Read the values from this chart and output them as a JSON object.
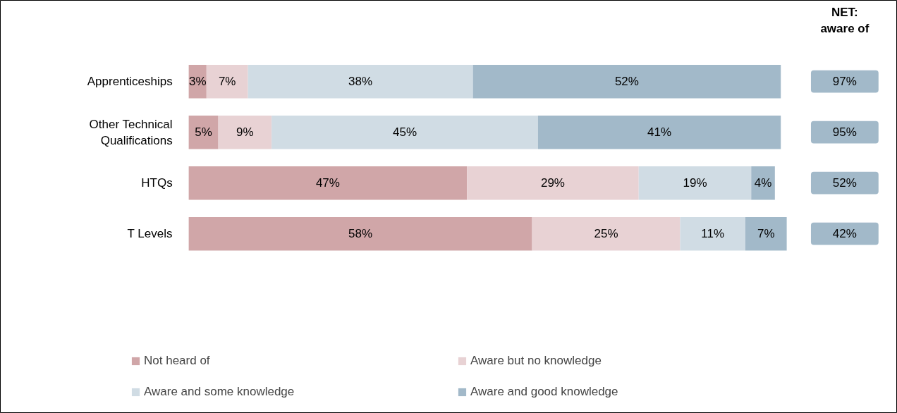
{
  "chart_data": {
    "type": "bar",
    "orientation": "horizontal",
    "stacked": true,
    "xlim": [
      0,
      101
    ],
    "tick_labels": "y",
    "legend": "bottom",
    "grid": false,
    "categories": [
      "Apprenticeships",
      "Other Technical Qualifications",
      "HTQs",
      "T Levels"
    ],
    "series": [
      {
        "name": "Not heard of",
        "color": "#d0a6a8",
        "values": [
          3,
          5,
          47,
          58
        ],
        "value_labels": [
          "3%",
          "5%",
          "47%",
          "58%"
        ]
      },
      {
        "name": "Aware but no knowledge",
        "color": "#e8d2d4",
        "values": [
          7,
          9,
          29,
          25
        ],
        "value_labels": [
          "7%",
          "9%",
          "29%",
          "25%"
        ]
      },
      {
        "name": "Aware and some knowledge",
        "color": "#d0dce4",
        "values": [
          38,
          45,
          19,
          11
        ],
        "value_labels": [
          "38%",
          "45%",
          "19%",
          "11%"
        ]
      },
      {
        "name": "Aware and good knowledge",
        "color": "#a2b9c9",
        "values": [
          52,
          41,
          4,
          7
        ],
        "value_labels": [
          "52%",
          "41%",
          "4%",
          "7%"
        ]
      }
    ],
    "annotations": [
      "NET: aware of",
      "97%",
      "95%",
      "52%",
      "42%"
    ]
  }
}
